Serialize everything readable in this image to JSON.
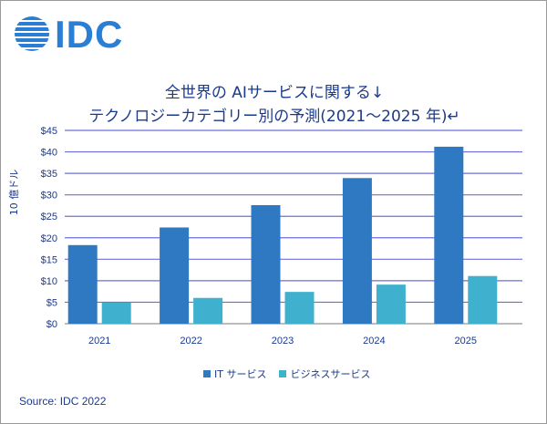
{
  "logo": {
    "text": "IDC"
  },
  "title": {
    "line1": "全世界の AIサービスに関する↓",
    "line2": "テクノロジーカテゴリー別の予測(2021～2025 年)↵"
  },
  "colors": {
    "series1": "#2f78c2",
    "series2": "#3fb1cf",
    "grid": "#6b6fd8",
    "text": "#1a3a8c"
  },
  "source": "Source: IDC 2022",
  "chart_data": {
    "type": "bar",
    "title": "全世界の AIサービスに関する↓ テクノロジーカテゴリー別の予測(2021～2025 年)↵",
    "xlabel": "",
    "ylabel": "10 億ドル",
    "categories": [
      "2021",
      "2022",
      "2023",
      "2024",
      "2025"
    ],
    "ylim": [
      0,
      45
    ],
    "yticks": [
      "$0",
      "$5",
      "$10",
      "$15",
      "$20",
      "$25",
      "$30",
      "$35",
      "$40",
      "$45"
    ],
    "ytick_values": [
      0,
      5,
      10,
      15,
      20,
      25,
      30,
      35,
      40,
      45
    ],
    "grid": true,
    "legend": "bottom",
    "series": [
      {
        "name": "IT サービス",
        "values": [
          18.3,
          22.4,
          27.6,
          33.9,
          41.2
        ]
      },
      {
        "name": "ビジネスサービス",
        "values": [
          4.9,
          6.0,
          7.4,
          9.1,
          11.1
        ]
      }
    ]
  }
}
